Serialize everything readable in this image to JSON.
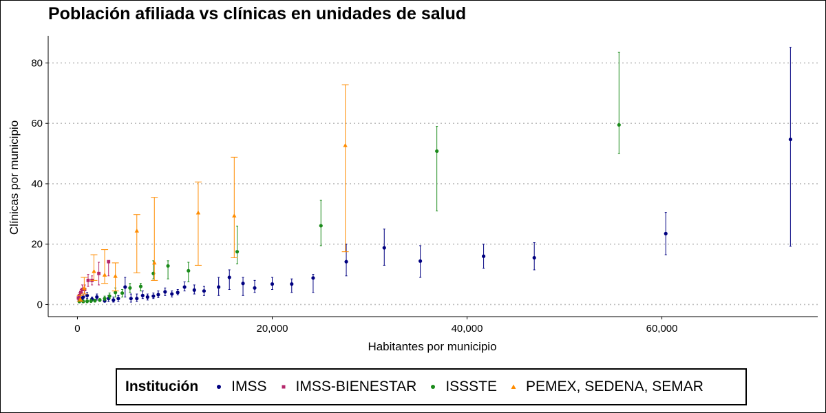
{
  "chart_data": {
    "type": "scatter",
    "title": "Población afiliada vs clínicas en unidades de salud",
    "xlabel": "Habitantes por municipio",
    "ylabel": "Clínicas por municipio",
    "xlim": [
      -3000,
      76000
    ],
    "ylim": [
      -4,
      89
    ],
    "x_ticks": [
      0,
      20000,
      40000,
      60000
    ],
    "x_tick_labels": [
      "0",
      "20,000",
      "40,000",
      "60,000"
    ],
    "y_ticks": [
      0,
      20,
      40,
      60,
      80
    ],
    "y_tick_labels": [
      "0",
      "20",
      "40",
      "60",
      "80"
    ],
    "grid": "horizontal dotted",
    "legend_title": "Institución",
    "legend_position": "bottom",
    "series": [
      {
        "name": "IMSS",
        "color": "#000080",
        "shape": "circle",
        "points": [
          {
            "x": 200,
            "y": 1.5,
            "lo": 1.0,
            "hi": 2.0
          },
          {
            "x": 400,
            "y": 1.8,
            "lo": 1.2,
            "hi": 2.5
          },
          {
            "x": 600,
            "y": 2.5,
            "lo": 1.5,
            "hi": 3.5
          },
          {
            "x": 1000,
            "y": 3.0,
            "lo": 2.0,
            "hi": 4.0
          },
          {
            "x": 1500,
            "y": 1.8,
            "lo": 1.2,
            "hi": 2.5
          },
          {
            "x": 2000,
            "y": 2.5,
            "lo": 1.5,
            "hi": 3.5
          },
          {
            "x": 2800,
            "y": 1.2,
            "lo": 0.8,
            "hi": 1.8
          },
          {
            "x": 3200,
            "y": 2.0,
            "lo": 1.0,
            "hi": 3.0
          },
          {
            "x": 3700,
            "y": 1.5,
            "lo": 0.8,
            "hi": 2.5
          },
          {
            "x": 4200,
            "y": 2.0,
            "lo": 1.0,
            "hi": 3.0
          },
          {
            "x": 4900,
            "y": 5.8,
            "lo": 2.5,
            "hi": 9.0
          },
          {
            "x": 5500,
            "y": 2.0,
            "lo": 0.8,
            "hi": 3.5
          },
          {
            "x": 6100,
            "y": 2.0,
            "lo": 1.0,
            "hi": 3.5
          },
          {
            "x": 6700,
            "y": 3.0,
            "lo": 2.0,
            "hi": 4.5
          },
          {
            "x": 7200,
            "y": 2.5,
            "lo": 1.5,
            "hi": 3.5
          },
          {
            "x": 7800,
            "y": 2.8,
            "lo": 2.0,
            "hi": 3.8
          },
          {
            "x": 8300,
            "y": 3.3,
            "lo": 2.3,
            "hi": 4.5
          },
          {
            "x": 9000,
            "y": 4.2,
            "lo": 3.0,
            "hi": 5.5
          },
          {
            "x": 9700,
            "y": 3.5,
            "lo": 2.5,
            "hi": 4.5
          },
          {
            "x": 10300,
            "y": 4.0,
            "lo": 3.2,
            "hi": 5.0
          },
          {
            "x": 11000,
            "y": 5.8,
            "lo": 4.5,
            "hi": 7.5
          },
          {
            "x": 12000,
            "y": 4.8,
            "lo": 3.5,
            "hi": 6.5
          },
          {
            "x": 13000,
            "y": 4.5,
            "lo": 3.0,
            "hi": 6.0
          },
          {
            "x": 14500,
            "y": 5.8,
            "lo": 3.0,
            "hi": 9.0
          },
          {
            "x": 15600,
            "y": 9.0,
            "lo": 5.0,
            "hi": 11.5
          },
          {
            "x": 17000,
            "y": 7.0,
            "lo": 3.0,
            "hi": 9.0
          },
          {
            "x": 18200,
            "y": 5.5,
            "lo": 4.0,
            "hi": 8.0
          },
          {
            "x": 20000,
            "y": 6.8,
            "lo": 5.0,
            "hi": 9.0
          },
          {
            "x": 22000,
            "y": 6.8,
            "lo": 4.0,
            "hi": 8.5
          },
          {
            "x": 24200,
            "y": 8.8,
            "lo": 4.0,
            "hi": 10.0
          },
          {
            "x": 27600,
            "y": 14.2,
            "lo": 9.5,
            "hi": 20.0
          },
          {
            "x": 31500,
            "y": 18.8,
            "lo": 13.0,
            "hi": 25.0
          },
          {
            "x": 35200,
            "y": 14.4,
            "lo": 9.0,
            "hi": 19.5
          },
          {
            "x": 41700,
            "y": 16.0,
            "lo": 12.0,
            "hi": 20.0
          },
          {
            "x": 46900,
            "y": 15.5,
            "lo": 11.5,
            "hi": 20.5
          },
          {
            "x": 60400,
            "y": 23.5,
            "lo": 16.5,
            "hi": 30.5
          },
          {
            "x": 73200,
            "y": 54.7,
            "lo": 19.3,
            "hi": 85.2
          }
        ]
      },
      {
        "name": "IMSS-BIENESTAR",
        "color": "#b5276b",
        "shape": "square",
        "points": [
          {
            "x": 100,
            "y": 2.2,
            "lo": 1.5,
            "hi": 3.0
          },
          {
            "x": 200,
            "y": 3.0,
            "lo": 2.0,
            "hi": 4.0
          },
          {
            "x": 350,
            "y": 4.0,
            "lo": 3.0,
            "hi": 5.0
          },
          {
            "x": 500,
            "y": 5.0,
            "lo": 4.0,
            "hi": 6.5
          },
          {
            "x": 750,
            "y": 5.0,
            "lo": 3.5,
            "hi": 6.5
          },
          {
            "x": 1100,
            "y": 8.0,
            "lo": 6.0,
            "hi": 10.0
          },
          {
            "x": 1500,
            "y": 8.0,
            "lo": 6.5,
            "hi": 9.5
          },
          {
            "x": 2200,
            "y": 10.3,
            "lo": 6.5,
            "hi": 14.0
          },
          {
            "x": 3200,
            "y": 14.2,
            "lo": 9.5,
            "hi": 14.5
          }
        ]
      },
      {
        "name": "ISSSTE",
        "color": "#1a8a1a",
        "shape": "circle",
        "points": [
          {
            "x": 200,
            "y": 1.0,
            "lo": 0.6,
            "hi": 1.5
          },
          {
            "x": 600,
            "y": 1.0,
            "lo": 0.6,
            "hi": 1.5
          },
          {
            "x": 1000,
            "y": 1.1,
            "lo": 0.6,
            "hi": 1.6
          },
          {
            "x": 1400,
            "y": 1.2,
            "lo": 0.7,
            "hi": 1.7
          },
          {
            "x": 1800,
            "y": 1.3,
            "lo": 0.8,
            "hi": 1.8
          },
          {
            "x": 2300,
            "y": 1.5,
            "lo": 1.0,
            "hi": 2.0
          },
          {
            "x": 2800,
            "y": 2.0,
            "lo": 1.3,
            "hi": 2.8
          },
          {
            "x": 3300,
            "y": 2.8,
            "lo": 2.0,
            "hi": 3.8
          },
          {
            "x": 3900,
            "y": 4.0,
            "lo": 2.5,
            "hi": 5.5
          },
          {
            "x": 4600,
            "y": 3.8,
            "lo": 2.5,
            "hi": 5.0
          },
          {
            "x": 5400,
            "y": 5.5,
            "lo": 4.0,
            "hi": 7.0
          },
          {
            "x": 6500,
            "y": 6.0,
            "lo": 4.5,
            "hi": 7.0
          },
          {
            "x": 7800,
            "y": 10.3,
            "lo": 8.5,
            "hi": 14.5
          },
          {
            "x": 9300,
            "y": 12.8,
            "lo": 8.5,
            "hi": 14.5
          },
          {
            "x": 11400,
            "y": 11.2,
            "lo": 7.5,
            "hi": 14.0
          },
          {
            "x": 16400,
            "y": 17.5,
            "lo": 13.5,
            "hi": 26.0
          },
          {
            "x": 25000,
            "y": 26.1,
            "lo": 19.5,
            "hi": 34.5
          },
          {
            "x": 36900,
            "y": 50.8,
            "lo": 31.0,
            "hi": 59.0
          },
          {
            "x": 55600,
            "y": 59.5,
            "lo": 50.0,
            "hi": 83.5
          }
        ]
      },
      {
        "name": "PEMEX, SEDENA, SEMAR",
        "color": "#ff8c00",
        "shape": "triangle",
        "points": [
          {
            "x": 300,
            "y": 1.8,
            "lo": 1.0,
            "hi": 3.0
          },
          {
            "x": 700,
            "y": 5.5,
            "lo": 3.5,
            "hi": 9.0
          },
          {
            "x": 1700,
            "y": 11.0,
            "lo": 8.0,
            "hi": 16.5
          },
          {
            "x": 2800,
            "y": 9.8,
            "lo": 7.0,
            "hi": 18.2
          },
          {
            "x": 3900,
            "y": 9.4,
            "lo": 4.5,
            "hi": 13.8
          },
          {
            "x": 6100,
            "y": 24.4,
            "lo": 10.5,
            "hi": 29.8
          },
          {
            "x": 7900,
            "y": 13.8,
            "lo": 8.0,
            "hi": 35.5
          },
          {
            "x": 12400,
            "y": 30.4,
            "lo": 13.0,
            "hi": 40.6
          },
          {
            "x": 16100,
            "y": 29.4,
            "lo": 15.5,
            "hi": 48.8
          },
          {
            "x": 27500,
            "y": 52.7,
            "lo": 17.5,
            "hi": 72.8
          }
        ]
      }
    ]
  }
}
